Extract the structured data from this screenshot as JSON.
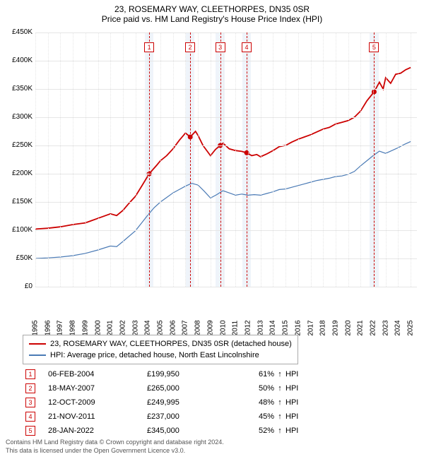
{
  "title_line1": "23, ROSEMARY WAY, CLEETHORPES, DN35 0SR",
  "title_line2": "Price paid vs. HM Land Registry's House Price Index (HPI)",
  "chart": {
    "type": "line",
    "xlim": [
      1995,
      2025.5
    ],
    "ylim": [
      0,
      450000
    ],
    "ytick_step": 50000,
    "y_labels": [
      "£0",
      "£50K",
      "£100K",
      "£150K",
      "£200K",
      "£250K",
      "£300K",
      "£350K",
      "£400K",
      "£450K"
    ],
    "x_labels": [
      "1995",
      "1996",
      "1997",
      "1998",
      "1999",
      "2000",
      "2001",
      "2002",
      "2003",
      "2004",
      "2005",
      "2006",
      "2007",
      "2008",
      "2009",
      "2010",
      "2011",
      "2012",
      "2013",
      "2014",
      "2015",
      "2016",
      "2017",
      "2018",
      "2019",
      "2020",
      "2021",
      "2022",
      "2023",
      "2024",
      "2025"
    ],
    "grid_color": "#e6e6e6",
    "background_color": "#ffffff",
    "band_color": "#e4edf7",
    "colors": {
      "property": "#cc0000",
      "hpi": "#4a7ab5"
    },
    "line_width": {
      "property": 1.8,
      "hpi": 1.2
    },
    "series_property": [
      [
        1995,
        102000
      ],
      [
        1996,
        103500
      ],
      [
        1997,
        106000
      ],
      [
        1998,
        110000
      ],
      [
        1999,
        113000
      ],
      [
        2000,
        121000
      ],
      [
        2001,
        129000
      ],
      [
        2001.5,
        126000
      ],
      [
        2002,
        135000
      ],
      [
        2002.5,
        148000
      ],
      [
        2003,
        160000
      ],
      [
        2003.5,
        178000
      ],
      [
        2004.1,
        199950
      ],
      [
        2004.7,
        215000
      ],
      [
        2005,
        223000
      ],
      [
        2005.5,
        232000
      ],
      [
        2006,
        244000
      ],
      [
        2006.5,
        259000
      ],
      [
        2007,
        272000
      ],
      [
        2007.38,
        265000
      ],
      [
        2007.8,
        275000
      ],
      [
        2008,
        268000
      ],
      [
        2008.4,
        250000
      ],
      [
        2008.8,
        238000
      ],
      [
        2009,
        232000
      ],
      [
        2009.4,
        243000
      ],
      [
        2009.78,
        249995
      ],
      [
        2010,
        254000
      ],
      [
        2010.5,
        244000
      ],
      [
        2011,
        241000
      ],
      [
        2011.5,
        239500
      ],
      [
        2011.89,
        237000
      ],
      [
        2012.3,
        232000
      ],
      [
        2012.7,
        234000
      ],
      [
        2013,
        230000
      ],
      [
        2013.5,
        235000
      ],
      [
        2014,
        241000
      ],
      [
        2014.5,
        248000
      ],
      [
        2015,
        250000
      ],
      [
        2015.5,
        256000
      ],
      [
        2016,
        261000
      ],
      [
        2016.5,
        265000
      ],
      [
        2017,
        269000
      ],
      [
        2017.5,
        274000
      ],
      [
        2018,
        279000
      ],
      [
        2018.5,
        282000
      ],
      [
        2019,
        288000
      ],
      [
        2019.5,
        291000
      ],
      [
        2020,
        294000
      ],
      [
        2020.5,
        300000
      ],
      [
        2021,
        311000
      ],
      [
        2021.5,
        329000
      ],
      [
        2022.08,
        345000
      ],
      [
        2022.5,
        362000
      ],
      [
        2022.8,
        350000
      ],
      [
        2023,
        370000
      ],
      [
        2023.4,
        360000
      ],
      [
        2023.8,
        376000
      ],
      [
        2024.2,
        378000
      ],
      [
        2024.6,
        384000
      ],
      [
        2025,
        388000
      ]
    ],
    "series_hpi": [
      [
        1995,
        50000
      ],
      [
        1996,
        51000
      ],
      [
        1997,
        52500
      ],
      [
        1998,
        55000
      ],
      [
        1999,
        59000
      ],
      [
        2000,
        65000
      ],
      [
        2001,
        72000
      ],
      [
        2001.5,
        71000
      ],
      [
        2002,
        80000
      ],
      [
        2003,
        99000
      ],
      [
        2003.5,
        113000
      ],
      [
        2004,
        127000
      ],
      [
        2004.5,
        140000
      ],
      [
        2005,
        150000
      ],
      [
        2005.5,
        158000
      ],
      [
        2006,
        166000
      ],
      [
        2006.5,
        172000
      ],
      [
        2007,
        178000
      ],
      [
        2007.5,
        183000
      ],
      [
        2008,
        180000
      ],
      [
        2008.5,
        169000
      ],
      [
        2009,
        157000
      ],
      [
        2009.5,
        163000
      ],
      [
        2010,
        170000
      ],
      [
        2010.5,
        166000
      ],
      [
        2011,
        162000
      ],
      [
        2011.5,
        164000
      ],
      [
        2012,
        162000
      ],
      [
        2012.5,
        163000
      ],
      [
        2013,
        162000
      ],
      [
        2013.5,
        165000
      ],
      [
        2014,
        168000
      ],
      [
        2014.5,
        172000
      ],
      [
        2015,
        173000
      ],
      [
        2015.5,
        176000
      ],
      [
        2016,
        179000
      ],
      [
        2016.5,
        182000
      ],
      [
        2017,
        185000
      ],
      [
        2017.5,
        188000
      ],
      [
        2018,
        190000
      ],
      [
        2018.5,
        192000
      ],
      [
        2019,
        195000
      ],
      [
        2019.5,
        196000
      ],
      [
        2020,
        199000
      ],
      [
        2020.5,
        204000
      ],
      [
        2021,
        214000
      ],
      [
        2021.5,
        223000
      ],
      [
        2022,
        232000
      ],
      [
        2022.5,
        240000
      ],
      [
        2023,
        236000
      ],
      [
        2023.5,
        241000
      ],
      [
        2024,
        246000
      ],
      [
        2024.5,
        252000
      ],
      [
        2025,
        257000
      ]
    ],
    "sale_markers": [
      {
        "n": "1",
        "year": 2004.1,
        "price": 199950
      },
      {
        "n": "2",
        "year": 2007.38,
        "price": 265000
      },
      {
        "n": "3",
        "year": 2009.78,
        "price": 249995
      },
      {
        "n": "4",
        "year": 2011.89,
        "price": 237000
      },
      {
        "n": "5",
        "year": 2022.08,
        "price": 345000
      }
    ],
    "band_half_width_years": 0.35,
    "dot_radius": 3.5
  },
  "legend": {
    "items": [
      {
        "color": "#cc0000",
        "label": "23, ROSEMARY WAY, CLEETHORPES, DN35 0SR (detached house)"
      },
      {
        "color": "#4a7ab5",
        "label": "HPI: Average price, detached house, North East Lincolnshire"
      }
    ]
  },
  "sales": [
    {
      "n": "1",
      "date": "06-FEB-2004",
      "price": "£199,950",
      "pct": "61%",
      "arrow": "↑",
      "hpi": "HPI"
    },
    {
      "n": "2",
      "date": "18-MAY-2007",
      "price": "£265,000",
      "pct": "50%",
      "arrow": "↑",
      "hpi": "HPI"
    },
    {
      "n": "3",
      "date": "12-OCT-2009",
      "price": "£249,995",
      "pct": "48%",
      "arrow": "↑",
      "hpi": "HPI"
    },
    {
      "n": "4",
      "date": "21-NOV-2011",
      "price": "£237,000",
      "pct": "45%",
      "arrow": "↑",
      "hpi": "HPI"
    },
    {
      "n": "5",
      "date": "28-JAN-2022",
      "price": "£345,000",
      "pct": "52%",
      "arrow": "↑",
      "hpi": "HPI"
    }
  ],
  "footer_line1": "Contains HM Land Registry data © Crown copyright and database right 2024.",
  "footer_line2": "This data is licensed under the Open Government Licence v3.0."
}
